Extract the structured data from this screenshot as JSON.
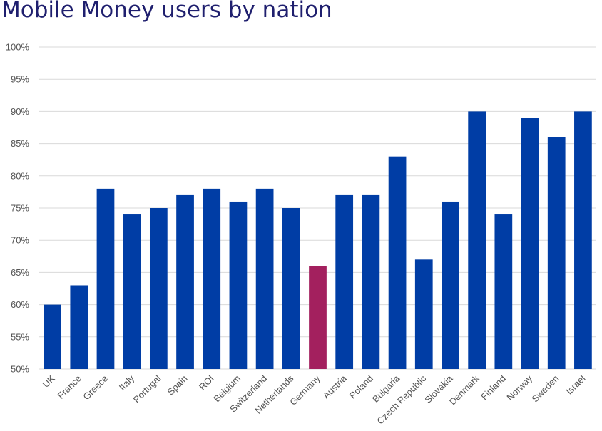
{
  "chart_data": {
    "type": "bar",
    "title": "Mobile Money users by nation",
    "xlabel": "",
    "ylabel": "",
    "ylim": [
      50,
      100
    ],
    "yticks": [
      "50%",
      "55%",
      "60%",
      "65%",
      "70%",
      "75%",
      "80%",
      "85%",
      "90%",
      "95%",
      "100%"
    ],
    "grid": true,
    "legend": "none",
    "categories": [
      "UK",
      "France",
      "Greece",
      "Italy",
      "Portugal",
      "Spain",
      "ROI",
      "Belgium",
      "Switzerland",
      "Netherlands",
      "Germany",
      "Austria",
      "Poland",
      "Bulgaria",
      "Czech Republic",
      "Slovakia",
      "Denmark",
      "Finland",
      "Norway",
      "Sweden",
      "Israel"
    ],
    "values": [
      60,
      63,
      78,
      74,
      75,
      77,
      78,
      76,
      78,
      75,
      66,
      77,
      77,
      83,
      67,
      76,
      90,
      74,
      89,
      86,
      90
    ],
    "highlight_category": "Germany",
    "colors": {
      "bar": "#003da5",
      "highlight": "#a3205e",
      "grid": "#d9d9d9",
      "title": "#1f1f6e"
    }
  }
}
